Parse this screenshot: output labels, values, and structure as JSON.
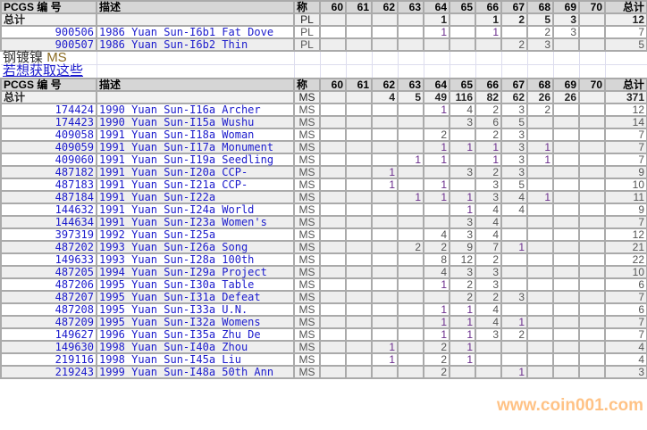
{
  "columns": {
    "pcgs": "PCGS 编 号",
    "desc": "描述",
    "grade": "称",
    "grades": [
      "60",
      "61",
      "62",
      "63",
      "64",
      "65",
      "66",
      "67",
      "68",
      "69",
      "70"
    ],
    "total": "总计"
  },
  "total_label": "总计",
  "pl_section": {
    "totals": {
      "grade": "PL",
      "counts": [
        null,
        null,
        null,
        null,
        1,
        null,
        1,
        2,
        5,
        3,
        null
      ],
      "total": 12
    },
    "rows": [
      {
        "id": "900506",
        "desc": "1986 Yuan Sun-I6b1 Fat Dove",
        "grade": "PL",
        "counts": [
          null,
          null,
          null,
          null,
          1,
          null,
          1,
          null,
          2,
          3,
          null
        ],
        "total": 7
      },
      {
        "id": "900507",
        "desc": "1986 Yuan Sun-I6b2 Thin",
        "grade": "PL",
        "counts": [
          null,
          null,
          null,
          null,
          null,
          null,
          null,
          2,
          3,
          null,
          null
        ],
        "total": 5
      }
    ]
  },
  "ms_heading": {
    "metal": "钢镀镍",
    "grade": "MS",
    "link": "若想获取这些"
  },
  "ms_section": {
    "totals": {
      "grade": "MS",
      "counts": [
        null,
        null,
        4,
        5,
        49,
        116,
        82,
        62,
        26,
        26,
        null
      ],
      "total": 371
    },
    "rows": [
      {
        "id": "174424",
        "desc": "1990 Yuan Sun-I16a Archer",
        "grade": "MS",
        "counts": [
          null,
          null,
          null,
          null,
          1,
          4,
          2,
          3,
          2,
          null,
          null
        ],
        "total": 12
      },
      {
        "id": "174423",
        "desc": "1990 Yuan Sun-I15a Wushu",
        "grade": "MS",
        "counts": [
          null,
          null,
          null,
          null,
          null,
          3,
          6,
          5,
          null,
          null,
          null
        ],
        "total": 14
      },
      {
        "id": "409058",
        "desc": "1991 Yuan Sun-I18a Woman",
        "grade": "MS",
        "counts": [
          null,
          null,
          null,
          null,
          2,
          null,
          2,
          3,
          null,
          null,
          null
        ],
        "total": 7
      },
      {
        "id": "409059",
        "desc": "1991 Yuan Sun-I17a Monument",
        "grade": "MS",
        "counts": [
          null,
          null,
          null,
          null,
          1,
          1,
          1,
          3,
          1,
          null,
          null
        ],
        "total": 7
      },
      {
        "id": "409060",
        "desc": "1991 Yuan Sun-I19a Seedling",
        "grade": "MS",
        "counts": [
          null,
          null,
          null,
          1,
          1,
          null,
          1,
          3,
          1,
          null,
          null
        ],
        "total": 7
      },
      {
        "id": "487182",
        "desc": "1991 Yuan Sun-I20a CCP-",
        "grade": "MS",
        "counts": [
          null,
          null,
          1,
          null,
          null,
          3,
          2,
          3,
          null,
          null,
          null
        ],
        "total": 9
      },
      {
        "id": "487183",
        "desc": "1991 Yuan Sun-I21a CCP-",
        "grade": "MS",
        "counts": [
          null,
          null,
          1,
          null,
          1,
          null,
          3,
          5,
          null,
          null,
          null
        ],
        "total": 10
      },
      {
        "id": "487184",
        "desc": "1991 Yuan Sun-I22a",
        "grade": "MS",
        "counts": [
          null,
          null,
          null,
          1,
          1,
          1,
          3,
          4,
          1,
          null,
          null
        ],
        "total": 11
      },
      {
        "id": "144632",
        "desc": "1991 Yuan Sun-I24a World",
        "grade": "MS",
        "counts": [
          null,
          null,
          null,
          null,
          null,
          1,
          4,
          4,
          null,
          null,
          null
        ],
        "total": 9
      },
      {
        "id": "144634",
        "desc": "1991 Yuan Sun-I23a Women's",
        "grade": "MS",
        "counts": [
          null,
          null,
          null,
          null,
          null,
          3,
          4,
          null,
          null,
          null,
          null
        ],
        "total": 7
      },
      {
        "id": "397319",
        "desc": "1992 Yuan Sun-I25a",
        "grade": "MS",
        "counts": [
          null,
          null,
          null,
          null,
          4,
          3,
          4,
          null,
          null,
          null,
          null
        ],
        "total": 12
      },
      {
        "id": "487202",
        "desc": "1993 Yuan Sun-I26a Song",
        "grade": "MS",
        "counts": [
          null,
          null,
          null,
          2,
          2,
          9,
          7,
          1,
          null,
          null,
          null
        ],
        "total": 21
      },
      {
        "id": "149633",
        "desc": "1993 Yuan Sun-I28a 100th",
        "grade": "MS",
        "counts": [
          null,
          null,
          null,
          null,
          8,
          12,
          2,
          null,
          null,
          null,
          null
        ],
        "total": 22
      },
      {
        "id": "487205",
        "desc": "1994 Yuan Sun-I29a Project",
        "grade": "MS",
        "counts": [
          null,
          null,
          null,
          null,
          4,
          3,
          3,
          null,
          null,
          null,
          null
        ],
        "total": 10
      },
      {
        "id": "487206",
        "desc": "1995 Yuan Sun-I30a Table",
        "grade": "MS",
        "counts": [
          null,
          null,
          null,
          null,
          1,
          2,
          3,
          null,
          null,
          null,
          null
        ],
        "total": 6
      },
      {
        "id": "487207",
        "desc": "1995 Yuan Sun-I31a Defeat",
        "grade": "MS",
        "counts": [
          null,
          null,
          null,
          null,
          null,
          2,
          2,
          3,
          null,
          null,
          null
        ],
        "total": 7
      },
      {
        "id": "487208",
        "desc": "1995 Yuan Sun-I33a U.N.",
        "grade": "MS",
        "counts": [
          null,
          null,
          null,
          null,
          1,
          1,
          4,
          null,
          null,
          null,
          null
        ],
        "total": 6
      },
      {
        "id": "487209",
        "desc": "1995 Yuan Sun-I32a Womens",
        "grade": "MS",
        "counts": [
          null,
          null,
          null,
          null,
          1,
          1,
          4,
          1,
          null,
          null,
          null
        ],
        "total": 7
      },
      {
        "id": "149627",
        "desc": "1996 Yuan Sun-I35a Zhu De",
        "grade": "MS",
        "counts": [
          null,
          null,
          null,
          null,
          1,
          1,
          3,
          2,
          null,
          null,
          null
        ],
        "total": 7
      },
      {
        "id": "149630",
        "desc": "1998 Yuan Sun-I40a Zhou",
        "grade": "MS",
        "counts": [
          null,
          null,
          1,
          null,
          2,
          1,
          null,
          null,
          null,
          null,
          null
        ],
        "total": 4
      },
      {
        "id": "219116",
        "desc": "1998 Yuan Sun-I45a Liu",
        "grade": "MS",
        "counts": [
          null,
          null,
          1,
          null,
          2,
          1,
          null,
          null,
          null,
          null,
          null
        ],
        "total": 4
      },
      {
        "id": "219243",
        "desc": "1999 Yuan Sun-I48a 50th Ann",
        "grade": "MS",
        "counts": [
          null,
          null,
          null,
          null,
          2,
          null,
          null,
          1,
          null,
          null,
          null
        ],
        "total": 3
      }
    ]
  },
  "watermark": "www.coin001.com",
  "colors": {
    "link_blue": "#1a1acc",
    "header_bg": "#d6d6d6",
    "alt_row": "#eeeeee",
    "one_purple": "#6a2c8c",
    "watermark": "#ffb870"
  }
}
